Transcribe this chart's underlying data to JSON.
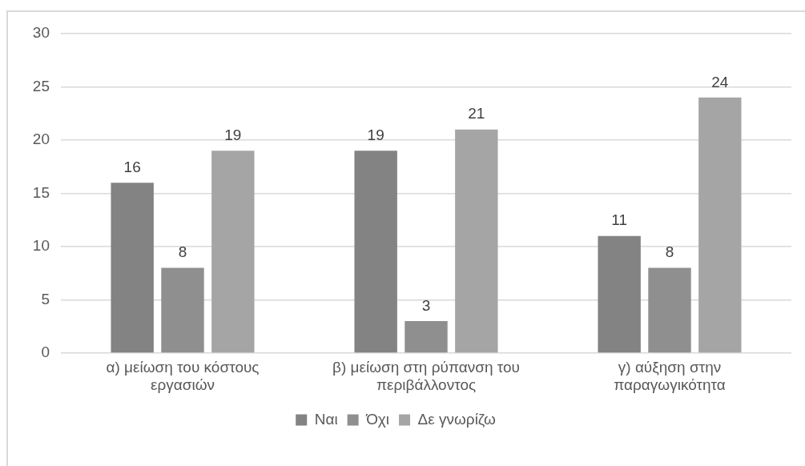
{
  "chart_data": {
    "type": "bar",
    "categories": [
      "α) μείωση του κόστους εργασιών",
      "β) μείωση στη ρύπανση του περιβάλλοντος",
      "γ) αύξηση στην παραγωγικότητα"
    ],
    "series": [
      {
        "name": "Ναι",
        "color": "#838383",
        "values": [
          16,
          19,
          11
        ]
      },
      {
        "name": "Όχι",
        "color": "#8f8f8f",
        "values": [
          8,
          3,
          8
        ]
      },
      {
        "name": "Δε γνωρίζω",
        "color": "#a5a5a5",
        "values": [
          19,
          21,
          24
        ]
      }
    ],
    "ylim": [
      0,
      30
    ],
    "yticks": [
      0,
      5,
      10,
      15,
      20,
      25,
      30
    ],
    "grid": "y",
    "legend": "bottom",
    "data_labels": true
  }
}
